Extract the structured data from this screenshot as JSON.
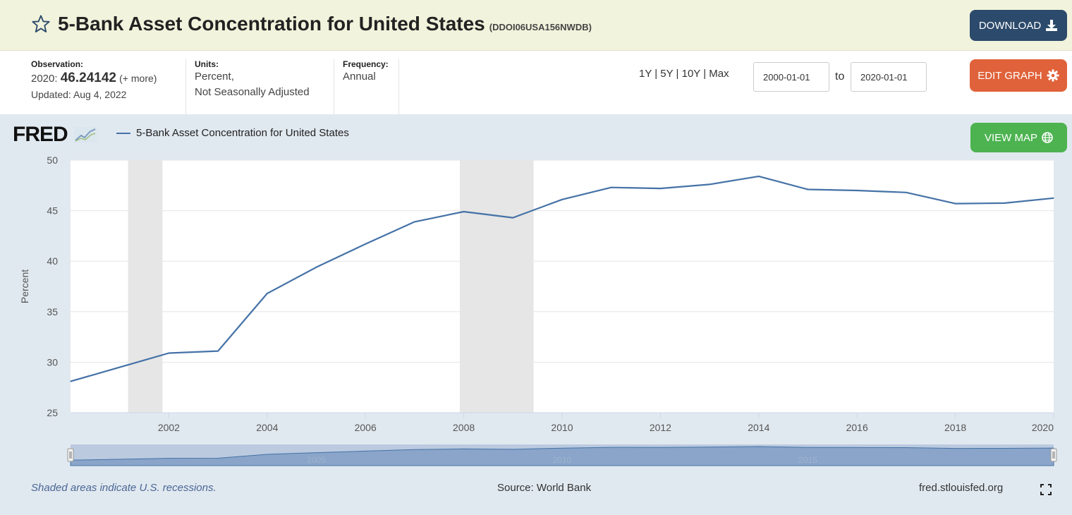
{
  "header": {
    "title": "5-Bank Asset Concentration for United States",
    "series_code": "(DDOI06USA156NWDB)",
    "download_label": "DOWNLOAD"
  },
  "info": {
    "observation_label": "Observation:",
    "observation_year": "2020:",
    "observation_value": "46.24142",
    "observation_more": "(+ more)",
    "updated": "Updated: Aug 4, 2022",
    "units_label": "Units:",
    "units_line1": "Percent,",
    "units_line2": "Not Seasonally Adjusted",
    "frequency_label": "Frequency:",
    "frequency_value": "Annual",
    "range_options": "1Y | 5Y | 10Y | Max",
    "date_from": "2000-01-01",
    "to_label": "to",
    "date_to": "2020-01-01",
    "edit_label": "EDIT GRAPH"
  },
  "chart_header": {
    "logo": "FRED",
    "view_map_label": "VIEW MAP"
  },
  "footer": {
    "note": "Shaded areas indicate U.S. recessions.",
    "source": "Source: World Bank",
    "site": "fred.stlouisfed.org"
  },
  "colors": {
    "series": "#4572a7",
    "recession": "#e6e6e6",
    "download": "#2c4a6b",
    "edit": "#e0623a",
    "map": "#4cb350"
  },
  "icons": [
    "star-icon",
    "download-icon",
    "gear-icon",
    "globe-icon",
    "expand-icon"
  ],
  "chart_data": {
    "type": "line",
    "title": "",
    "xlabel": "",
    "ylabel": "Percent",
    "xlim": [
      2000,
      2020
    ],
    "ylim": [
      25,
      50
    ],
    "yticks": [
      25,
      30,
      35,
      40,
      45,
      50
    ],
    "xticks": [
      2002,
      2004,
      2006,
      2008,
      2010,
      2012,
      2014,
      2016,
      2018,
      2020
    ],
    "navigator_ticks": [
      2005,
      2010,
      2015
    ],
    "grid": true,
    "legend": "top-left",
    "recessions": [
      [
        2001.17,
        2001.87
      ],
      [
        2007.92,
        2009.42
      ]
    ],
    "series": [
      {
        "name": "5-Bank Asset Concentration for United States",
        "x": [
          2000,
          2001,
          2002,
          2003,
          2004,
          2005,
          2006,
          2007,
          2008,
          2009,
          2010,
          2011,
          2012,
          2013,
          2014,
          2015,
          2016,
          2017,
          2018,
          2019,
          2020
        ],
        "values": [
          28.1,
          29.5,
          30.9,
          31.1,
          36.8,
          39.4,
          41.7,
          43.9,
          44.9,
          44.3,
          46.1,
          47.3,
          47.2,
          47.6,
          48.4,
          47.1,
          47.0,
          46.8,
          45.7,
          45.75,
          46.24
        ]
      }
    ]
  }
}
